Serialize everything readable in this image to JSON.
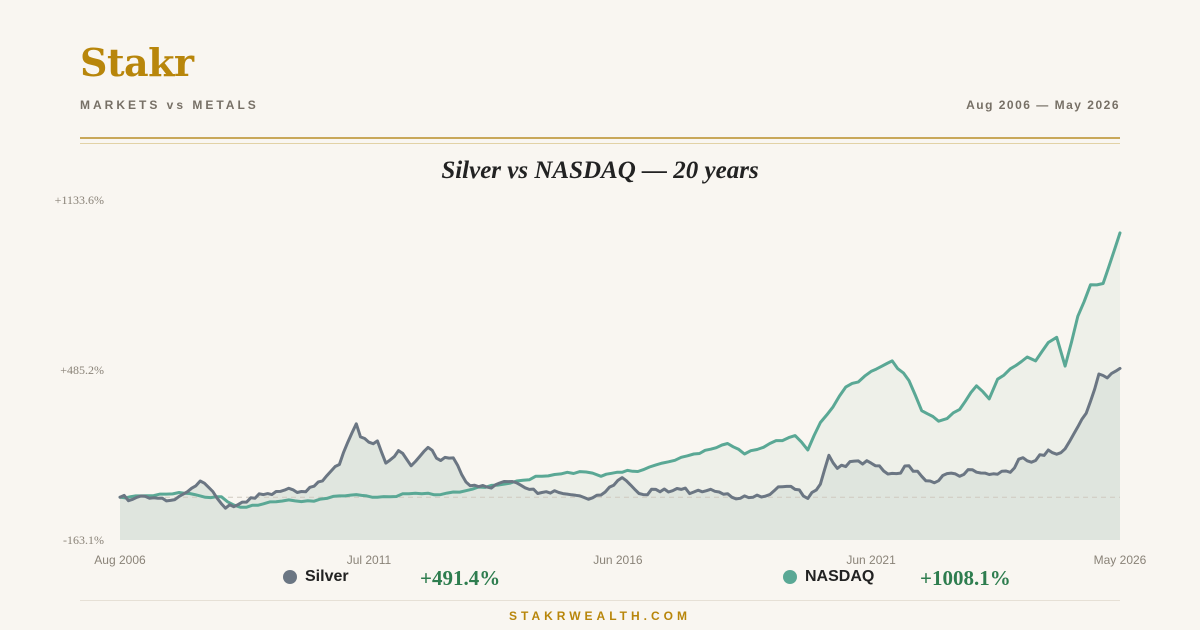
{
  "header": {
    "brand": "Stakr",
    "tagline": "MARKETS vs METALS",
    "date_range": "Aug 2006 — May 2026"
  },
  "footer": {
    "site": "STAKRWEALTH.COM"
  },
  "colors": {
    "silver": "#6b7683",
    "nasdaq": "#5aa895",
    "accent": "#b8860b",
    "positive": "#2e7d4f"
  },
  "chart_data": {
    "type": "line",
    "title": "Silver vs NASDAQ — 20 years",
    "y_unit": "percent change",
    "ylim": [
      -163.1,
      1133.6
    ],
    "y_ticks": [
      "+1133.6%",
      "+485.2%",
      "-163.1%"
    ],
    "y_tick_values": [
      1133.6,
      485.2,
      -163.1
    ],
    "x_range": [
      "2006-08",
      "2026-05"
    ],
    "x_ticks": [
      {
        "date": "2006-08",
        "label": "Aug 2006"
      },
      {
        "date": "2011-07",
        "label": "Jul 2011"
      },
      {
        "date": "2016-06",
        "label": "Jun 2016"
      },
      {
        "date": "2021-06",
        "label": "Jun 2021"
      },
      {
        "date": "2026-05",
        "label": "May 2026"
      }
    ],
    "zero_baseline": true,
    "grid": false,
    "legend": "bottom",
    "series": [
      {
        "name": "Silver",
        "final_label": "+491.4%",
        "points": [
          [
            "2006-08",
            0
          ],
          [
            "2006-11",
            -8
          ],
          [
            "2007-02",
            3
          ],
          [
            "2007-05",
            -4
          ],
          [
            "2007-08",
            -12
          ],
          [
            "2007-11",
            12
          ],
          [
            "2008-03",
            62
          ],
          [
            "2008-06",
            22
          ],
          [
            "2008-09",
            -42
          ],
          [
            "2008-12",
            -28
          ],
          [
            "2009-03",
            -2
          ],
          [
            "2009-06",
            10
          ],
          [
            "2009-09",
            22
          ],
          [
            "2009-12",
            34
          ],
          [
            "2010-03",
            22
          ],
          [
            "2010-06",
            42
          ],
          [
            "2010-09",
            82
          ],
          [
            "2010-12",
            125
          ],
          [
            "2011-02",
            210
          ],
          [
            "2011-04",
            280
          ],
          [
            "2011-05",
            230
          ],
          [
            "2011-07",
            210
          ],
          [
            "2011-09",
            215
          ],
          [
            "2011-11",
            130
          ],
          [
            "2012-02",
            178
          ],
          [
            "2012-05",
            120
          ],
          [
            "2012-09",
            190
          ],
          [
            "2012-12",
            140
          ],
          [
            "2013-03",
            150
          ],
          [
            "2013-06",
            58
          ],
          [
            "2013-09",
            40
          ],
          [
            "2013-12",
            35
          ],
          [
            "2014-03",
            60
          ],
          [
            "2014-06",
            55
          ],
          [
            "2014-09",
            30
          ],
          [
            "2014-12",
            18
          ],
          [
            "2015-03",
            25
          ],
          [
            "2015-06",
            12
          ],
          [
            "2015-09",
            5
          ],
          [
            "2015-12",
            -2
          ],
          [
            "2016-03",
            20
          ],
          [
            "2016-07",
            75
          ],
          [
            "2016-10",
            30
          ],
          [
            "2016-12",
            10
          ],
          [
            "2017-03",
            30
          ],
          [
            "2017-06",
            20
          ],
          [
            "2017-09",
            30
          ],
          [
            "2017-12",
            20
          ],
          [
            "2018-03",
            25
          ],
          [
            "2018-06",
            20
          ],
          [
            "2018-09",
            0
          ],
          [
            "2018-12",
            5
          ],
          [
            "2019-03",
            8
          ],
          [
            "2019-06",
            10
          ],
          [
            "2019-09",
            40
          ],
          [
            "2019-12",
            30
          ],
          [
            "2020-03",
            -5
          ],
          [
            "2020-06",
            50
          ],
          [
            "2020-08",
            160
          ],
          [
            "2020-10",
            110
          ],
          [
            "2021-02",
            138
          ],
          [
            "2021-06",
            130
          ],
          [
            "2021-09",
            100
          ],
          [
            "2021-12",
            90
          ],
          [
            "2022-03",
            120
          ],
          [
            "2022-06",
            80
          ],
          [
            "2022-09",
            55
          ],
          [
            "2022-12",
            90
          ],
          [
            "2023-03",
            80
          ],
          [
            "2023-06",
            105
          ],
          [
            "2023-09",
            92
          ],
          [
            "2023-12",
            88
          ],
          [
            "2024-03",
            95
          ],
          [
            "2024-05",
            145
          ],
          [
            "2024-09",
            140
          ],
          [
            "2024-12",
            180
          ],
          [
            "2025-03",
            170
          ],
          [
            "2025-06",
            240
          ],
          [
            "2025-09",
            320
          ],
          [
            "2025-12",
            470
          ],
          [
            "2026-02",
            455
          ],
          [
            "2026-05",
            491.4
          ]
        ]
      },
      {
        "name": "NASDAQ",
        "final_label": "+1008.1%",
        "points": [
          [
            "2006-08",
            0
          ],
          [
            "2007-01",
            5
          ],
          [
            "2007-07",
            12
          ],
          [
            "2007-10",
            18
          ],
          [
            "2008-03",
            5
          ],
          [
            "2008-08",
            2
          ],
          [
            "2008-11",
            -30
          ],
          [
            "2009-02",
            -38
          ],
          [
            "2009-06",
            -25
          ],
          [
            "2009-12",
            -10
          ],
          [
            "2010-06",
            -15
          ],
          [
            "2010-12",
            5
          ],
          [
            "2011-04",
            10
          ],
          [
            "2011-09",
            0
          ],
          [
            "2011-12",
            2
          ],
          [
            "2012-06",
            15
          ],
          [
            "2012-12",
            10
          ],
          [
            "2013-06",
            25
          ],
          [
            "2013-12",
            45
          ],
          [
            "2014-06",
            62
          ],
          [
            "2014-12",
            80
          ],
          [
            "2015-06",
            95
          ],
          [
            "2015-12",
            92
          ],
          [
            "2016-02",
            80
          ],
          [
            "2016-07",
            95
          ],
          [
            "2016-12",
            105
          ],
          [
            "2017-06",
            135
          ],
          [
            "2017-12",
            165
          ],
          [
            "2018-08",
            205
          ],
          [
            "2018-12",
            165
          ],
          [
            "2019-06",
            205
          ],
          [
            "2019-12",
            235
          ],
          [
            "2020-03",
            180
          ],
          [
            "2020-06",
            285
          ],
          [
            "2020-09",
            345
          ],
          [
            "2020-12",
            420
          ],
          [
            "2021-03",
            440
          ],
          [
            "2021-06",
            480
          ],
          [
            "2021-11",
            520
          ],
          [
            "2022-03",
            445
          ],
          [
            "2022-06",
            330
          ],
          [
            "2022-10",
            290
          ],
          [
            "2022-12",
            300
          ],
          [
            "2023-03",
            335
          ],
          [
            "2023-07",
            425
          ],
          [
            "2023-10",
            375
          ],
          [
            "2023-12",
            450
          ],
          [
            "2024-03",
            490
          ],
          [
            "2024-07",
            535
          ],
          [
            "2024-09",
            520
          ],
          [
            "2024-12",
            590
          ],
          [
            "2025-02",
            610
          ],
          [
            "2025-04",
            500
          ],
          [
            "2025-07",
            690
          ],
          [
            "2025-10",
            810
          ],
          [
            "2026-01",
            815
          ],
          [
            "2026-05",
            1008.1
          ]
        ]
      }
    ]
  }
}
